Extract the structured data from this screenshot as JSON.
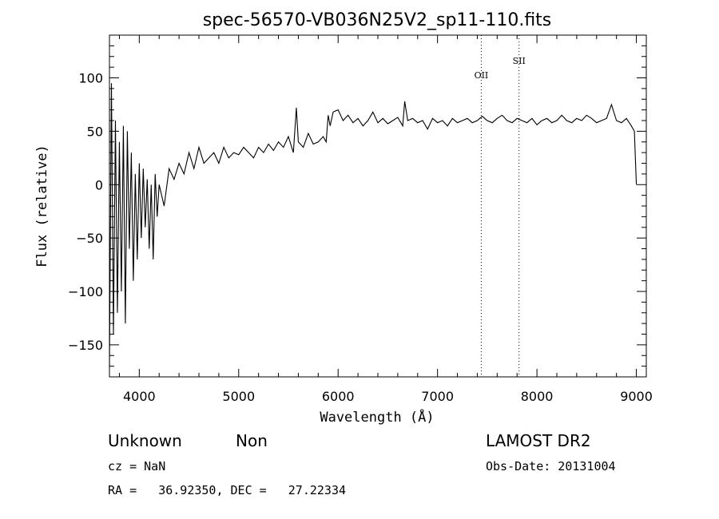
{
  "chart_data": {
    "type": "line",
    "title": "spec-56570-VB036N25V2_sp11-110.fits",
    "xlabel": "Wavelength (Å)",
    "ylabel": "Flux (relative)",
    "xlim": [
      3700,
      9100
    ],
    "ylim": [
      -180,
      140
    ],
    "xticks": [
      4000,
      5000,
      6000,
      7000,
      8000,
      9000
    ],
    "yticks": [
      -150,
      -100,
      -50,
      0,
      50,
      100
    ],
    "xtick_labels": [
      "4000",
      "5000",
      "6000",
      "7000",
      "8000",
      "9000"
    ],
    "ytick_labels": [
      "−150",
      "−100",
      "−50",
      "0",
      "50",
      "100"
    ],
    "grid": false,
    "series": [
      {
        "x": [
          3700,
          3720,
          3740,
          3760,
          3780,
          3800,
          3820,
          3840,
          3860,
          3880,
          3900,
          3920,
          3940,
          3960,
          3980,
          4000,
          4020,
          4040,
          4060,
          4080,
          4100,
          4120,
          4140,
          4160,
          4180,
          4200,
          4250,
          4300,
          4350,
          4400,
          4450,
          4500,
          4550,
          4600,
          4650,
          4700,
          4750,
          4800,
          4850,
          4900,
          4950,
          5000,
          5050,
          5100,
          5150,
          5200,
          5250,
          5300,
          5350,
          5400,
          5450,
          5500,
          5550,
          5580,
          5600,
          5650,
          5700,
          5750,
          5800,
          5850,
          5880,
          5900,
          5920,
          5950,
          6000,
          6050,
          6100,
          6150,
          6200,
          6250,
          6300,
          6350,
          6400,
          6450,
          6500,
          6550,
          6600,
          6650,
          6670,
          6700,
          6750,
          6800,
          6850,
          6900,
          6950,
          7000,
          7050,
          7100,
          7150,
          7200,
          7250,
          7300,
          7350,
          7400,
          7450,
          7500,
          7550,
          7600,
          7650,
          7700,
          7750,
          7800,
          7850,
          7900,
          7950,
          8000,
          8050,
          8100,
          8150,
          8200,
          8250,
          8300,
          8350,
          8400,
          8450,
          8500,
          8550,
          8600,
          8650,
          8700,
          8750,
          8800,
          8850,
          8900,
          8950,
          8980,
          9000
        ],
        "y": [
          -170,
          95,
          -140,
          60,
          -120,
          40,
          -100,
          55,
          -130,
          50,
          -60,
          30,
          -90,
          10,
          -70,
          20,
          -50,
          15,
          -40,
          5,
          -60,
          0,
          -70,
          10,
          -30,
          0,
          -20,
          15,
          5,
          20,
          10,
          30,
          15,
          35,
          20,
          25,
          30,
          20,
          35,
          25,
          30,
          28,
          35,
          30,
          25,
          35,
          30,
          38,
          32,
          40,
          35,
          45,
          30,
          72,
          40,
          35,
          48,
          38,
          40,
          45,
          40,
          65,
          55,
          68,
          70,
          60,
          65,
          58,
          62,
          55,
          60,
          68,
          58,
          62,
          57,
          60,
          63,
          55,
          78,
          60,
          62,
          58,
          60,
          52,
          62,
          58,
          60,
          55,
          62,
          58,
          60,
          62,
          58,
          60,
          64,
          60,
          58,
          62,
          65,
          60,
          58,
          62,
          60,
          58,
          62,
          56,
          60,
          62,
          58,
          60,
          65,
          60,
          58,
          62,
          60,
          65,
          62,
          58,
          60,
          62,
          75,
          60,
          58,
          62,
          55,
          50,
          0
        ]
      }
    ],
    "emission_lines": [
      {
        "name": "OII",
        "x": 7440
      },
      {
        "name": "SII",
        "x": 7820
      }
    ]
  },
  "info": {
    "class_text": "Unknown",
    "subclass_text": "Non",
    "survey": "LAMOST DR2",
    "cz": "cz = NaN",
    "obs_date": "Obs-Date: 20131004",
    "coords": "RA =   36.92350, DEC =   27.22334"
  }
}
